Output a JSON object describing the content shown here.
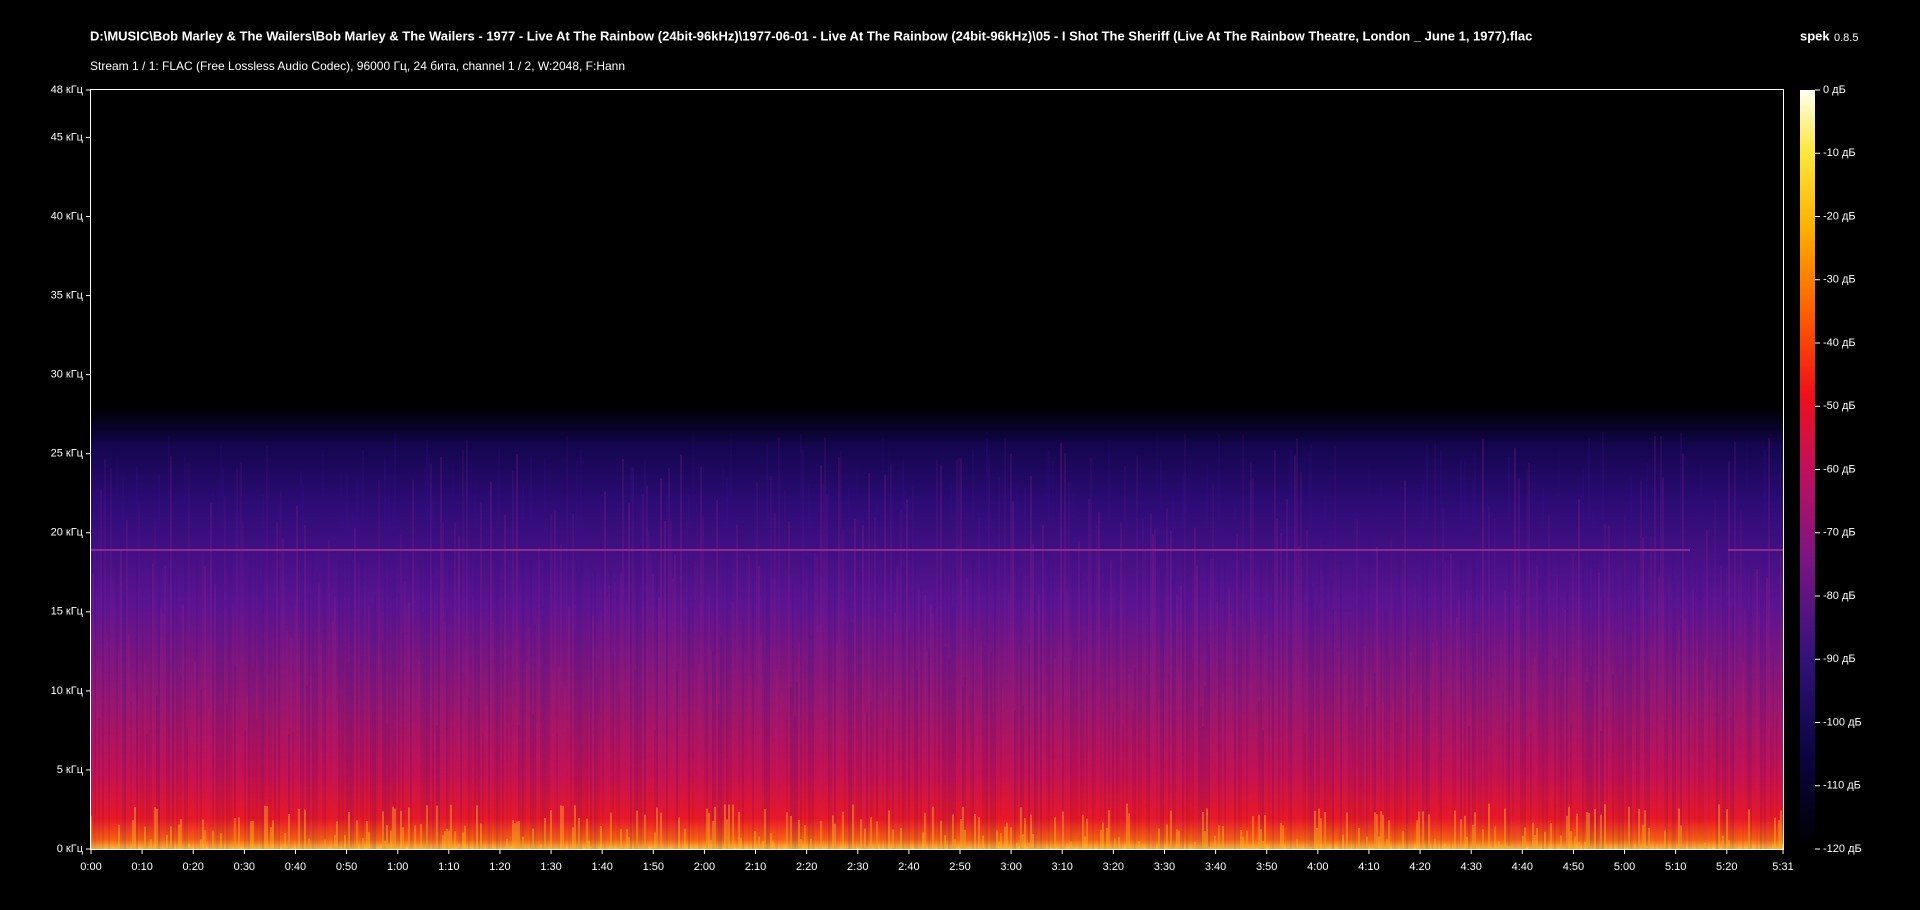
{
  "chart_data": {
    "type": "spectrogram",
    "title": "D:\\MUSIC\\Bob Marley & The Wailers\\Bob Marley & The Wailers - 1977 - Live At The Rainbow  (24bit-96kHz)\\1977-06-01 - Live At The Rainbow (24bit-96kHz)\\05 - I Shot The Sheriff (Live At The Rainbow Theatre, London _ June 1, 1977).flac",
    "subtitle": "Stream 1 / 1: FLAC (Free Lossless Audio Codec), 96000 Гц, 24 бита, channel 1 / 2, W:2048, F:Hann",
    "app_name": "spek",
    "app_version": "0.8.5",
    "xlim": [
      0,
      331
    ],
    "xticks": [
      {
        "value": 0,
        "label": "0:00"
      },
      {
        "value": 10,
        "label": "0:10"
      },
      {
        "value": 20,
        "label": "0:20"
      },
      {
        "value": 30,
        "label": "0:30"
      },
      {
        "value": 40,
        "label": "0:40"
      },
      {
        "value": 50,
        "label": "0:50"
      },
      {
        "value": 60,
        "label": "1:00"
      },
      {
        "value": 70,
        "label": "1:10"
      },
      {
        "value": 80,
        "label": "1:20"
      },
      {
        "value": 90,
        "label": "1:30"
      },
      {
        "value": 100,
        "label": "1:40"
      },
      {
        "value": 110,
        "label": "1:50"
      },
      {
        "value": 120,
        "label": "2:00"
      },
      {
        "value": 130,
        "label": "2:10"
      },
      {
        "value": 140,
        "label": "2:20"
      },
      {
        "value": 150,
        "label": "2:30"
      },
      {
        "value": 160,
        "label": "2:40"
      },
      {
        "value": 170,
        "label": "2:50"
      },
      {
        "value": 180,
        "label": "3:00"
      },
      {
        "value": 190,
        "label": "3:10"
      },
      {
        "value": 200,
        "label": "3:20"
      },
      {
        "value": 210,
        "label": "3:30"
      },
      {
        "value": 220,
        "label": "3:40"
      },
      {
        "value": 230,
        "label": "3:50"
      },
      {
        "value": 240,
        "label": "4:00"
      },
      {
        "value": 250,
        "label": "4:10"
      },
      {
        "value": 260,
        "label": "4:20"
      },
      {
        "value": 270,
        "label": "4:30"
      },
      {
        "value": 280,
        "label": "4:40"
      },
      {
        "value": 290,
        "label": "4:50"
      },
      {
        "value": 300,
        "label": "5:00"
      },
      {
        "value": 310,
        "label": "5:10"
      },
      {
        "value": 320,
        "label": "5:20"
      },
      {
        "value": 331,
        "label": "5:31"
      }
    ],
    "ylim": [
      0,
      48
    ],
    "yticks": [
      {
        "value": 0,
        "label": "0 кГц"
      },
      {
        "value": 5,
        "label": "5 кГц"
      },
      {
        "value": 10,
        "label": "10 кГц"
      },
      {
        "value": 15,
        "label": "15 кГц"
      },
      {
        "value": 20,
        "label": "20 кГц"
      },
      {
        "value": 25,
        "label": "25 кГц"
      },
      {
        "value": 30,
        "label": "30 кГц"
      },
      {
        "value": 35,
        "label": "35 кГц"
      },
      {
        "value": 40,
        "label": "40 кГц"
      },
      {
        "value": 45,
        "label": "45 кГц"
      },
      {
        "value": 48,
        "label": "48 кГц"
      }
    ],
    "zlim": [
      -120,
      0
    ],
    "zticks": [
      {
        "value": 0,
        "label": "0 дБ"
      },
      {
        "value": -10,
        "label": "-10 дБ"
      },
      {
        "value": -20,
        "label": "-20 дБ"
      },
      {
        "value": -30,
        "label": "-30 дБ"
      },
      {
        "value": -40,
        "label": "-40 дБ"
      },
      {
        "value": -50,
        "label": "-50 дБ"
      },
      {
        "value": -60,
        "label": "-60 дБ"
      },
      {
        "value": -70,
        "label": "-70 дБ"
      },
      {
        "value": -80,
        "label": "-80 дБ"
      },
      {
        "value": -90,
        "label": "-90 дБ"
      },
      {
        "value": -100,
        "label": "-100 дБ"
      },
      {
        "value": -110,
        "label": "-110 дБ"
      },
      {
        "value": -120,
        "label": "-120 дБ"
      }
    ]
  }
}
